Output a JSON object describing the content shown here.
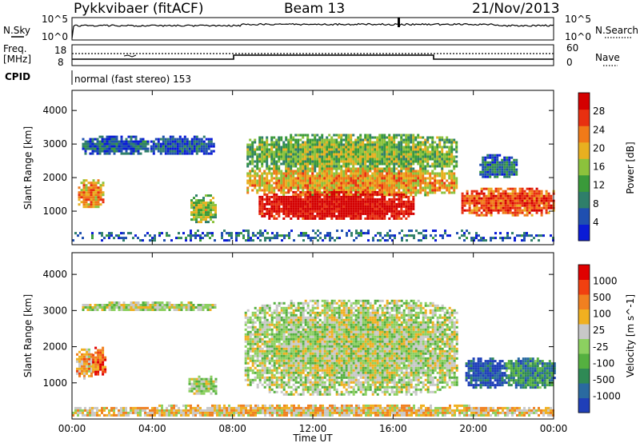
{
  "header": {
    "title": "Pykkvibaer (fitACF)",
    "beam": "Beam 13",
    "date": "21/Nov/2013"
  },
  "top_panel": {
    "left_label": "N.Sky",
    "left_ticks": [
      "10^5",
      "10^0"
    ],
    "right_label": "N.Search",
    "right_ticks": [
      "10^5",
      "10^0"
    ]
  },
  "freq_panel": {
    "left_label_1": "Freq.",
    "left_label_2": "[MHz]",
    "left_ticks": [
      "18",
      "8"
    ],
    "right_label": "Nave",
    "right_ticks": [
      "60",
      "0"
    ],
    "cpid_label": "CPID",
    "mode_text": "normal (fast stereo) 153"
  },
  "chart_data": [
    {
      "type": "heatmap",
      "panel": "power",
      "ylabel": "Slant Range [km]",
      "x_ticks": [
        "00:00",
        "04:00",
        "08:00",
        "12:00",
        "16:00",
        "20:00",
        "00:00"
      ],
      "y_ticks": [
        "1000",
        "2000",
        "3000",
        "4000"
      ],
      "xlim": [
        0,
        24
      ],
      "ylim": [
        0,
        4600
      ],
      "colorbar": {
        "label": "Power [dB]",
        "ticks": [
          "4",
          "8",
          "12",
          "16",
          "20",
          "24",
          "28"
        ],
        "colors": [
          "#0a1bd6",
          "#1f4fb0",
          "#2f7f6a",
          "#3a9a3a",
          "#8cc23c",
          "#e8b020",
          "#f07a18",
          "#e83010",
          "#d40000"
        ]
      },
      "regions": [
        {
          "x0": 0.3,
          "x1": 1.6,
          "y0": 1150,
          "y1": 1950,
          "level": 0.62
        },
        {
          "x0": 0.5,
          "x1": 3.8,
          "y0": 2700,
          "y1": 3250,
          "level": 0.15
        },
        {
          "x0": 3.9,
          "x1": 7.1,
          "y0": 2700,
          "y1": 3250,
          "level": 0.12
        },
        {
          "x0": 5.9,
          "x1": 7.2,
          "y0": 700,
          "y1": 1500,
          "level": 0.45
        },
        {
          "x0": 8.7,
          "x1": 19.2,
          "y0": 2200,
          "y1": 3300,
          "level": 0.4
        },
        {
          "x0": 8.7,
          "x1": 19.2,
          "y0": 1500,
          "y1": 2300,
          "level": 0.6
        },
        {
          "x0": 9.3,
          "x1": 17.0,
          "y0": 750,
          "y1": 1600,
          "level": 0.93
        },
        {
          "x0": 19.4,
          "x1": 24.0,
          "y0": 900,
          "y1": 1700,
          "level": 0.75
        },
        {
          "x0": 20.3,
          "x1": 22.1,
          "y0": 2000,
          "y1": 2700,
          "level": 0.2
        },
        {
          "x0": 0.0,
          "x1": 24.0,
          "y0": 100,
          "y1": 450,
          "level": 0.15
        }
      ]
    },
    {
      "type": "heatmap",
      "panel": "velocity",
      "ylabel": "Slant Range [km]",
      "xlabel": "Time UT",
      "x_ticks": [
        "00:00",
        "04:00",
        "08:00",
        "12:00",
        "16:00",
        "20:00",
        "00:00"
      ],
      "y_ticks": [
        "1000",
        "2000",
        "3000",
        "4000"
      ],
      "xlim": [
        0,
        24
      ],
      "ylim": [
        0,
        4600
      ],
      "colorbar": {
        "label": "Velocity [m s^-1]",
        "ticks": [
          "1000",
          "500",
          "100",
          "25",
          "-25",
          "-100",
          "-500",
          "-1000"
        ],
        "colors": [
          "#1f3fb8",
          "#2a6aa0",
          "#2f8a55",
          "#55b040",
          "#8cd060",
          "#c8c8c8",
          "#f0b020",
          "#f08020",
          "#f04010",
          "#e00000"
        ]
      },
      "regions": [
        {
          "x0": 0.2,
          "x1": 1.0,
          "y0": 1150,
          "y1": 1950,
          "level": 0.65
        },
        {
          "x0": 1.0,
          "x1": 1.6,
          "y0": 1250,
          "y1": 2000,
          "level": 0.78
        },
        {
          "x0": 0.5,
          "x1": 7.1,
          "y0": 3000,
          "y1": 3250,
          "level": 0.5
        },
        {
          "x0": 5.8,
          "x1": 7.2,
          "y0": 700,
          "y1": 1200,
          "level": 0.5
        },
        {
          "x0": 8.6,
          "x1": 19.2,
          "y0": 700,
          "y1": 3300,
          "level": 0.5
        },
        {
          "x0": 19.6,
          "x1": 21.6,
          "y0": 900,
          "y1": 1700,
          "level": 0.05
        },
        {
          "x0": 21.6,
          "x1": 24.0,
          "y0": 900,
          "y1": 1700,
          "level": 0.25
        },
        {
          "x0": 0.0,
          "x1": 24.0,
          "y0": 100,
          "y1": 400,
          "level": 0.62
        }
      ]
    }
  ]
}
